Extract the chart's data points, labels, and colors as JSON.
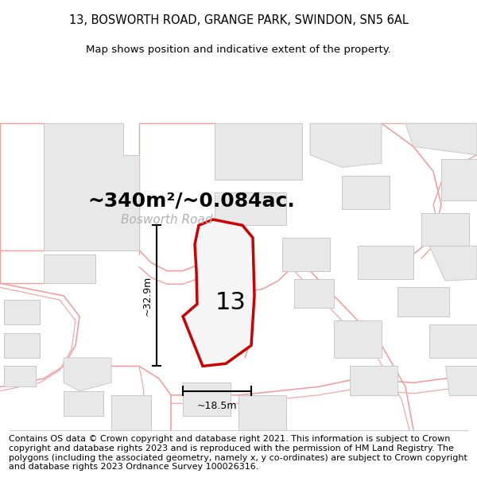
{
  "title": "13, BOSWORTH ROAD, GRANGE PARK, SWINDON, SN5 6AL",
  "subtitle": "Map shows position and indicative extent of the property.",
  "area_label": "~340m²/~0.084ac.",
  "street_label": "Bosworth Road",
  "number_label": "13",
  "width_label": "~18.5m",
  "height_label": "~32.9m",
  "footer_text": "Contains OS data © Crown copyright and database right 2021. This information is subject to Crown copyright and database rights 2023 and is reproduced with the permission of HM Land Registry. The polygons (including the associated geometry, namely x, y co-ordinates) are subject to Crown copyright and database rights 2023 Ordnance Survey 100026316.",
  "road_color": "#f0a0a0",
  "building_color": "#e8e8e8",
  "building_edge": "#c8c8c8",
  "red_outline": "#cc0000",
  "prop_fill": "#f5f5f5",
  "title_fontsize": 10.5,
  "subtitle_fontsize": 9.5,
  "footer_fontsize": 8.0,
  "area_fontsize": 18,
  "street_fontsize": 11,
  "number_fontsize": 22,
  "dim_fontsize": 9
}
